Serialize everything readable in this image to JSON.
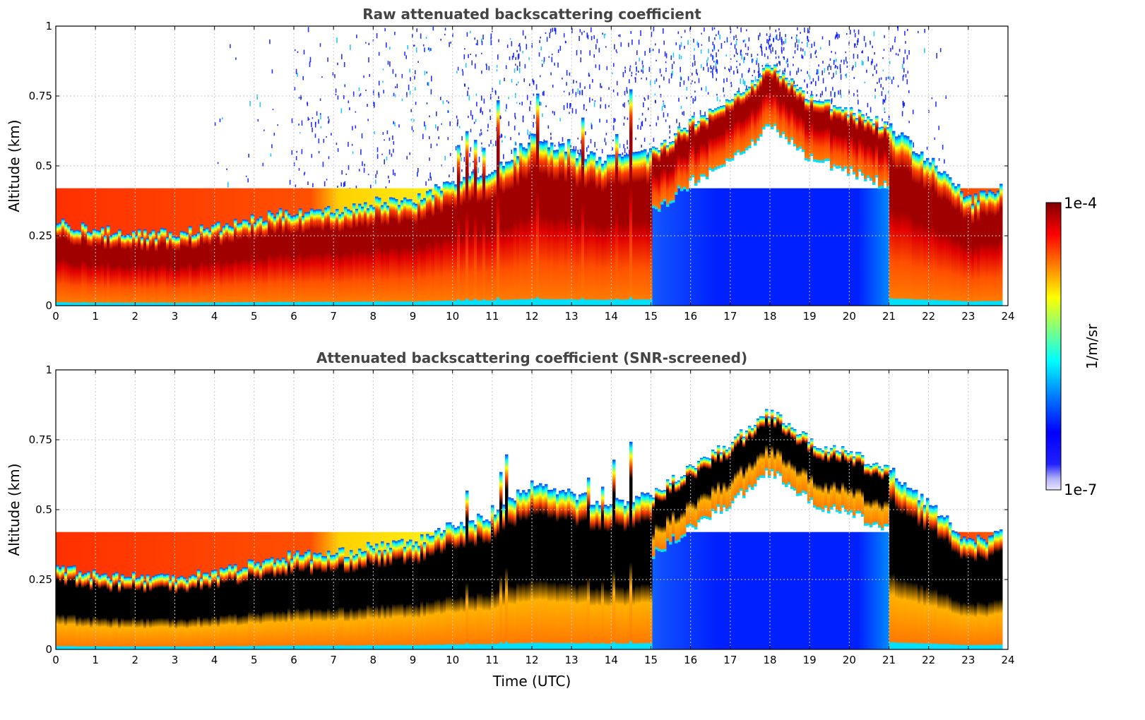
{
  "chart_data": [
    {
      "type": "heatmap",
      "title": "Raw attenuated backscattering coefficient",
      "xlabel": "",
      "ylabel": "Altitude (km)",
      "xlim": [
        0,
        24
      ],
      "ylim": [
        0,
        1
      ],
      "x_ticks": [
        "0",
        "1",
        "2",
        "3",
        "4",
        "5",
        "6",
        "7",
        "8",
        "9",
        "10",
        "11",
        "12",
        "13",
        "14",
        "15",
        "16",
        "17",
        "18",
        "19",
        "20",
        "21",
        "22",
        "23",
        "24"
      ],
      "y_ticks": [
        "0",
        "0.25",
        "0.5",
        "0.75",
        "1"
      ],
      "grid": true,
      "screened": false,
      "layer_top_km": {
        "x": [
          0,
          1,
          2,
          3,
          4,
          5,
          6,
          7,
          8,
          9,
          10,
          11,
          12,
          13,
          14,
          15,
          16,
          17,
          18,
          19,
          20,
          21,
          22,
          23,
          23.8
        ],
        "y": [
          0.3,
          0.27,
          0.26,
          0.26,
          0.28,
          0.31,
          0.34,
          0.34,
          0.37,
          0.38,
          0.45,
          0.48,
          0.6,
          0.55,
          0.52,
          0.55,
          0.66,
          0.74,
          0.86,
          0.74,
          0.7,
          0.64,
          0.52,
          0.38,
          0.42
        ]
      }
    },
    {
      "type": "heatmap",
      "title": "Attenuated backscattering coefficient (SNR-screened)",
      "xlabel": "Time (UTC)",
      "ylabel": "Altitude (km)",
      "xlim": [
        0,
        24
      ],
      "ylim": [
        0,
        1
      ],
      "x_ticks": [
        "0",
        "1",
        "2",
        "3",
        "4",
        "5",
        "6",
        "7",
        "8",
        "9",
        "10",
        "11",
        "12",
        "13",
        "14",
        "15",
        "16",
        "17",
        "18",
        "19",
        "20",
        "21",
        "22",
        "23",
        "24"
      ],
      "y_ticks": [
        "0",
        "0.25",
        "0.5",
        "0.75",
        "1"
      ],
      "grid": true,
      "screened": true,
      "layer_top_km": {
        "x": [
          0,
          1,
          2,
          3,
          4,
          5,
          6,
          7,
          8,
          9,
          10,
          11,
          12,
          13,
          14,
          15,
          16,
          17,
          18,
          19,
          20,
          21,
          22,
          23,
          23.8
        ],
        "y": [
          0.3,
          0.27,
          0.26,
          0.26,
          0.28,
          0.31,
          0.34,
          0.34,
          0.37,
          0.38,
          0.45,
          0.48,
          0.6,
          0.55,
          0.52,
          0.55,
          0.66,
          0.74,
          0.86,
          0.74,
          0.7,
          0.64,
          0.52,
          0.38,
          0.42
        ]
      }
    }
  ],
  "colorbar": {
    "label": "1/m/sr",
    "max_label": "1e-4",
    "min_label": "1e-7",
    "colormap": [
      "#7f0000",
      "#ff0000",
      "#ff7f00",
      "#ffff00",
      "#7fff7f",
      "#00ffff",
      "#007fff",
      "#0000ff",
      "#e6e6ff"
    ]
  }
}
